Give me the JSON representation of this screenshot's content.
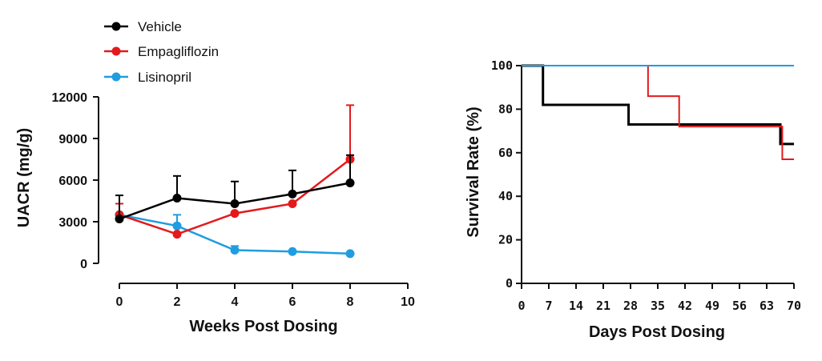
{
  "chart_data": [
    {
      "type": "line",
      "xlabel": "Weeks Post Dosing",
      "ylabel": "UACR (mg/g)",
      "xlim": [
        0,
        10
      ],
      "ylim": [
        0,
        12000
      ],
      "xticks": [
        "0",
        "2",
        "4",
        "6",
        "8",
        "10"
      ],
      "yticks": [
        "0",
        "3000",
        "6000",
        "9000",
        "12000"
      ],
      "legend_position": "top-left",
      "series": [
        {
          "name": "Vehicle",
          "color": "#000000",
          "x": [
            0,
            2,
            4,
            6,
            8
          ],
          "values": [
            3200,
            4700,
            4300,
            5000,
            5800
          ],
          "error": [
            1700,
            1600,
            1600,
            1700,
            2000
          ]
        },
        {
          "name": "Empagliflozin",
          "color": "#e31a1c",
          "x": [
            0,
            2,
            4,
            6,
            8
          ],
          "values": [
            3500,
            2100,
            3600,
            4300,
            7500
          ],
          "error": [
            800,
            0,
            0,
            0,
            3900
          ]
        },
        {
          "name": "Lisinopril",
          "color": "#1f9de0",
          "x": [
            0,
            2,
            4,
            6,
            8
          ],
          "values": [
            3500,
            2700,
            950,
            850,
            700
          ],
          "error": [
            0,
            800,
            300,
            0,
            0
          ]
        }
      ]
    },
    {
      "type": "line",
      "subtype": "step",
      "xlabel": "Days Post Dosing",
      "ylabel": "Survival Rate (%)",
      "xlim": [
        0,
        70
      ],
      "ylim": [
        0,
        100
      ],
      "xticks": [
        "0",
        "7",
        "14",
        "21",
        "28",
        "35",
        "42",
        "49",
        "56",
        "63",
        "70"
      ],
      "yticks": [
        "0",
        "20",
        "40",
        "60",
        "80",
        "100"
      ],
      "series": [
        {
          "name": "Vehicle",
          "color": "#000000",
          "x": [
            0,
            5.5,
            27.5,
            66.5,
            70
          ],
          "values": [
            100,
            82,
            73,
            64,
            64
          ]
        },
        {
          "name": "Empagliflozin",
          "color": "#e31a1c",
          "x": [
            0,
            32.5,
            40.5,
            67,
            70
          ],
          "values": [
            100,
            86,
            72,
            57,
            57
          ]
        },
        {
          "name": "Lisinopril",
          "color": "#1f9de0",
          "x": [
            0,
            70
          ],
          "values": [
            100,
            100
          ]
        }
      ]
    }
  ]
}
